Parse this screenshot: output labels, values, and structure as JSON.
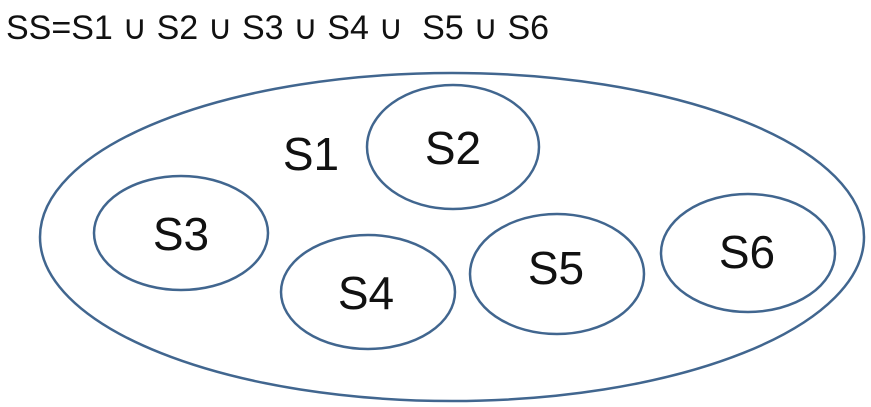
{
  "formula": "SS=S1 ∪ S2 ∪ S3 ∪ S4 ∪  S5 ∪ S6",
  "outline_color": "#41668f",
  "sets": {
    "s1": "S1",
    "s2": "S2",
    "s3": "S3",
    "s4": "S4",
    "s5": "S5",
    "s6": "S6"
  }
}
